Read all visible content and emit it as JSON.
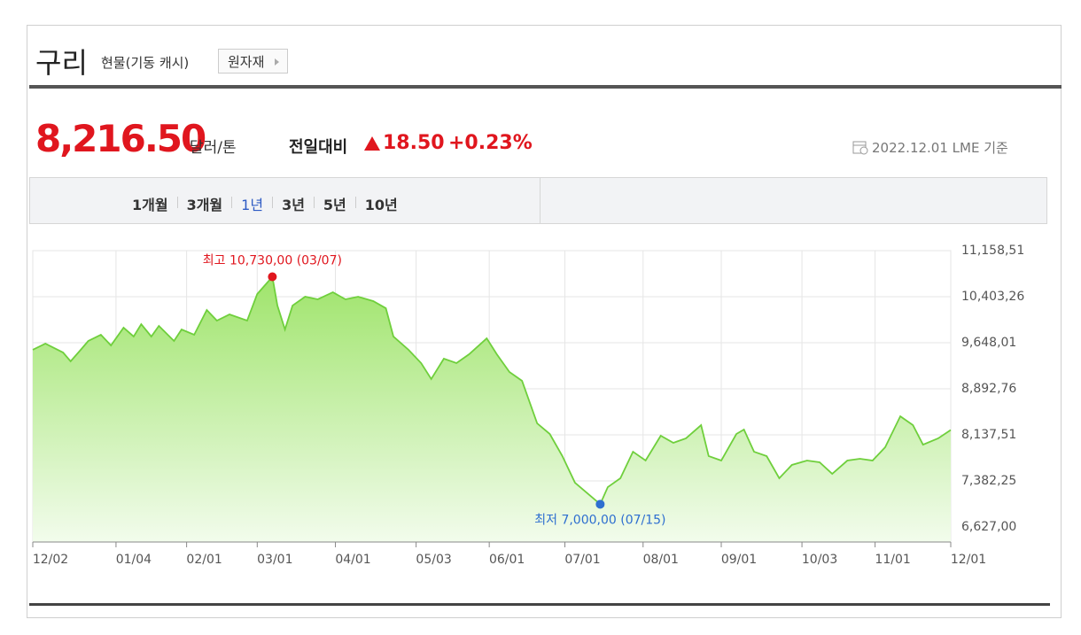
{
  "header": {
    "title": "구리",
    "subtitle": "현물(기동 캐시)",
    "button": "원자재",
    "price": "8,216.50",
    "unit": "달러/톤",
    "change_label": "전일대비",
    "change": "18.50",
    "change_pct": "+0.23%",
    "date": "2022.12.01 LME 기준"
  },
  "tabs": {
    "items": [
      "1개월",
      "3개월",
      "1년",
      "3년",
      "5년",
      "10년"
    ],
    "active": "1년"
  },
  "chart_data": {
    "type": "area",
    "color": "#6fcf3c",
    "x": [
      0,
      5,
      12,
      15,
      19,
      22,
      27,
      31,
      36,
      40,
      43,
      47,
      50,
      56,
      59,
      64,
      69,
      73,
      78,
      85,
      89,
      95,
      97,
      100,
      103,
      108,
      113,
      119,
      124,
      129,
      135,
      140,
      143,
      149,
      154,
      158,
      163,
      168,
      173,
      180,
      184,
      189,
      194,
      200,
      205,
      210,
      215,
      225,
      228,
      233,
      238,
      243,
      249,
      254,
      259,
      265,
      268,
      273,
      279,
      282,
      286,
      291,
      296,
      301,
      307,
      312,
      317,
      323,
      328,
      333,
      338,
      344,
      349,
      353,
      359,
      364
    ],
    "values": [
      9532,
      9634,
      9488,
      9343,
      9532,
      9677,
      9779,
      9604,
      9895,
      9750,
      9953,
      9750,
      9924,
      9677,
      9866,
      9779,
      10185,
      10011,
      10113,
      10011,
      10447,
      10730,
      10258,
      9866,
      10258,
      10403,
      10360,
      10476,
      10360,
      10403,
      10331,
      10214,
      9750,
      9532,
      9314,
      9053,
      9387,
      9314,
      9459,
      9720,
      9459,
      9169,
      9024,
      8326,
      8152,
      7789,
      7353,
      7000,
      7280,
      7426,
      7861,
      7716,
      8123,
      8007,
      8080,
      8297,
      7789,
      7716,
      8152,
      8225,
      7861,
      7789,
      7426,
      7644,
      7716,
      7687,
      7498,
      7716,
      7745,
      7716,
      7934,
      8442,
      8297,
      7977,
      8080,
      8216.5
    ],
    "xlim": [
      0,
      364
    ],
    "xticks": [
      {
        "value": 0,
        "label": "12/02"
      },
      {
        "value": 33,
        "label": "01/04"
      },
      {
        "value": 61,
        "label": "02/01"
      },
      {
        "value": 89,
        "label": "03/01"
      },
      {
        "value": 120,
        "label": "04/01"
      },
      {
        "value": 152,
        "label": "05/03"
      },
      {
        "value": 181,
        "label": "06/01"
      },
      {
        "value": 211,
        "label": "07/01"
      },
      {
        "value": 242,
        "label": "08/01"
      },
      {
        "value": 273,
        "label": "09/01"
      },
      {
        "value": 305,
        "label": "10/03"
      },
      {
        "value": 334,
        "label": "11/01"
      },
      {
        "value": 364,
        "label": "12/01"
      }
    ],
    "ylim": [
      6627,
      11158.51
    ],
    "yticks": [
      {
        "value": 11158.51,
        "label": "11,158,51"
      },
      {
        "value": 10403.26,
        "label": "10,403,26"
      },
      {
        "value": 9648.01,
        "label": "9,648,01"
      },
      {
        "value": 8892.76,
        "label": "8,892,76"
      },
      {
        "value": 8137.51,
        "label": "8,137,51"
      },
      {
        "value": 7382.25,
        "label": "7,382,25"
      },
      {
        "value": 6627,
        "label": "6,627,00"
      }
    ],
    "grid": true,
    "annotations": [
      {
        "text": "최고 10,730,00 (03/07)",
        "x": 95,
        "y": 10730,
        "color": "#e0161e"
      },
      {
        "text": "최저 7,000,00 (07/15)",
        "x": 225,
        "y": 7000,
        "color": "#2e6fd0"
      }
    ]
  }
}
